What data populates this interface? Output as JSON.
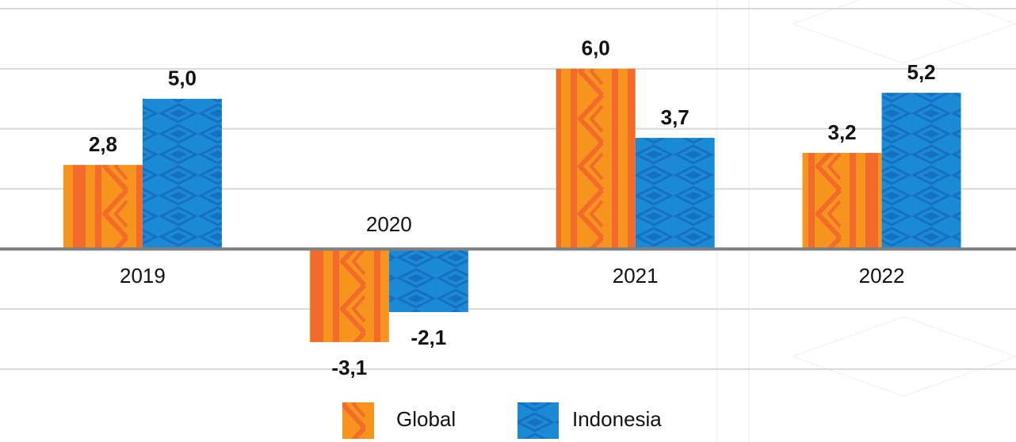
{
  "chart_data": {
    "type": "bar",
    "categories": [
      "2019",
      "2020",
      "2021",
      "2022"
    ],
    "series": [
      {
        "name": "Global",
        "color": "#f7941d",
        "values": [
          2.8,
          -3.1,
          6.0,
          3.2
        ],
        "value_labels": [
          "2,8",
          "-3,1",
          "6,0",
          "3,2"
        ]
      },
      {
        "name": "Indonesia",
        "color": "#1b8ad6",
        "values": [
          5.0,
          -2.1,
          3.7,
          5.2
        ],
        "value_labels": [
          "5,0",
          "-2,1",
          "3,7",
          "5,2"
        ]
      }
    ],
    "ylim": [
      -4,
      8
    ],
    "yticks": [
      -4,
      -2,
      0,
      2,
      4,
      6,
      8
    ],
    "show_tick_labels": false,
    "grid": true,
    "legend": "bottom"
  }
}
